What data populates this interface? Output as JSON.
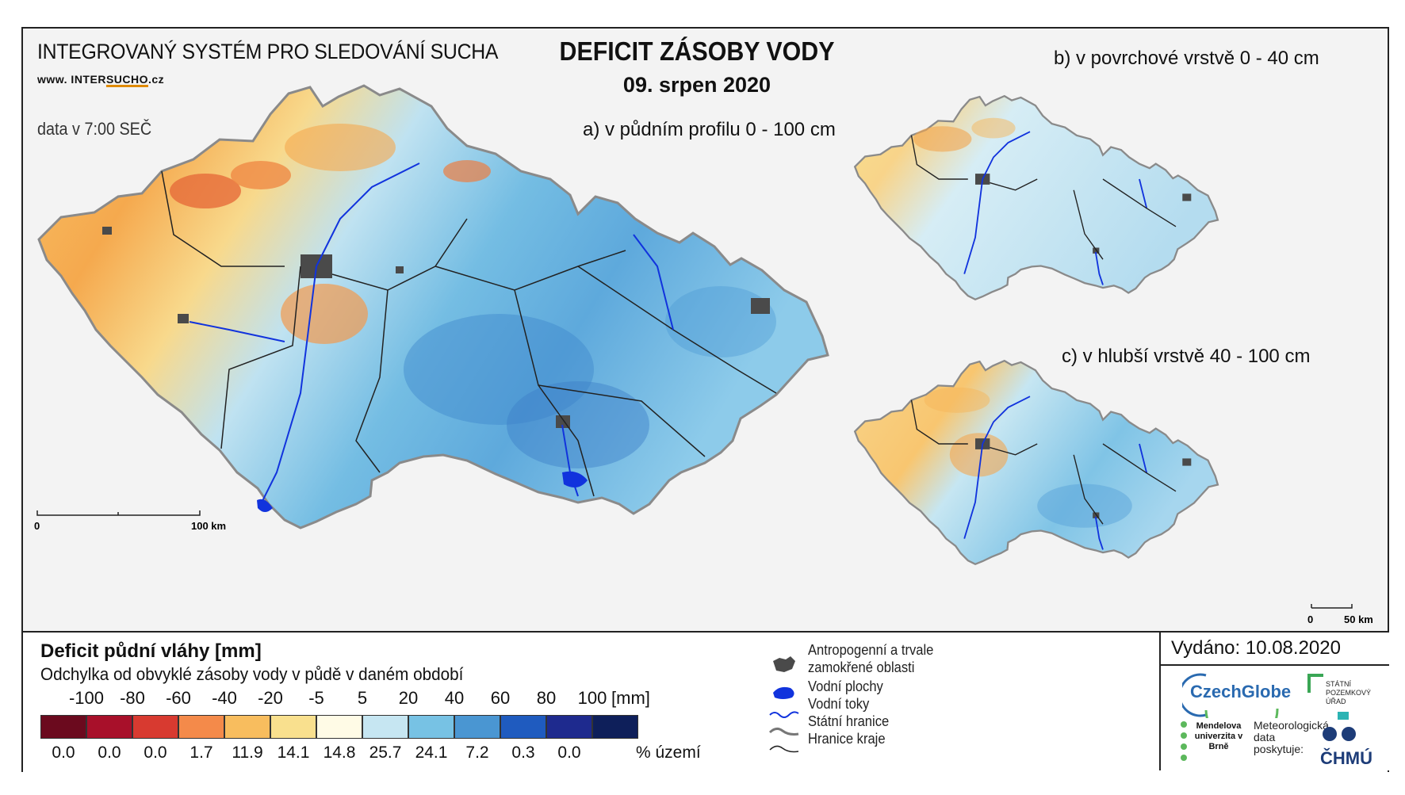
{
  "header": {
    "system_title": "INTEGROVANÝ SYSTÉM PRO SLEDOVÁNÍ SUCHA",
    "website_prefix": "www. INTER",
    "website_highlight": "SUCHO",
    "website_suffix": ".cz",
    "data_time": "data v 7:00 SEČ",
    "main_title": "DEFICIT ZÁSOBY VODY",
    "date": "09. srpen 2020"
  },
  "maps": {
    "a_label": "a) v půdním profilu 0 - 100 cm",
    "b_label": "b) v povrchové vrstvě 0 - 40 cm",
    "c_label": "c) v hlubší vrstvě 40 - 100 cm",
    "scale_main": {
      "zero": "0",
      "end": "100 km"
    },
    "scale_small": {
      "zero": "0",
      "end": "50 km"
    }
  },
  "legend": {
    "title": "Deficit půdní vláhy  [mm]",
    "subtitle": "Odchylka od obvyklé zásoby vody v půdě v daném období",
    "ticks": [
      "-100",
      "-80",
      "-60",
      "-40",
      "-20",
      "-5",
      "5",
      "20",
      "40",
      "60",
      "80",
      "100"
    ],
    "unit": "[mm]",
    "colors": [
      "#6b0a1e",
      "#a8102a",
      "#d83a30",
      "#f48a4a",
      "#f8bd5e",
      "#f9e08e",
      "#fffbe6",
      "#c6e6f2",
      "#77c2e4",
      "#4a96d2",
      "#1f5bbf",
      "#1e2a8e",
      "#0e1f5a"
    ],
    "percentages": [
      "0.0",
      "0.0",
      "0.0",
      "1.7",
      "11.9",
      "14.1",
      "14.8",
      "25.7",
      "24.1",
      "7.2",
      "0.3",
      "0.0"
    ],
    "percent_label": "% území",
    "symbols": [
      {
        "icon": "urban-area-icon",
        "label_line1": "Antropogenní a trvale",
        "label_line2": "zamokřené oblasti"
      },
      {
        "icon": "water-body-icon",
        "label_line1": "Vodní plochy"
      },
      {
        "icon": "river-icon",
        "label_line1": "Vodní toky"
      },
      {
        "icon": "state-border-icon",
        "label_line1": "Státní hranice"
      },
      {
        "icon": "region-border-icon",
        "label_line1": "Hranice kraje"
      }
    ]
  },
  "footer": {
    "issued": "Vydáno: 10.08.2020",
    "logos": {
      "czechglobe": "CzechGlobe",
      "spu": "STÁTNÍ POZEMKOVÝ ÚŘAD",
      "mendel": "Mendelova univerzita v Brně",
      "meteo": "Meteorologická data poskytuje:",
      "chmu": "ČHMÚ"
    }
  }
}
